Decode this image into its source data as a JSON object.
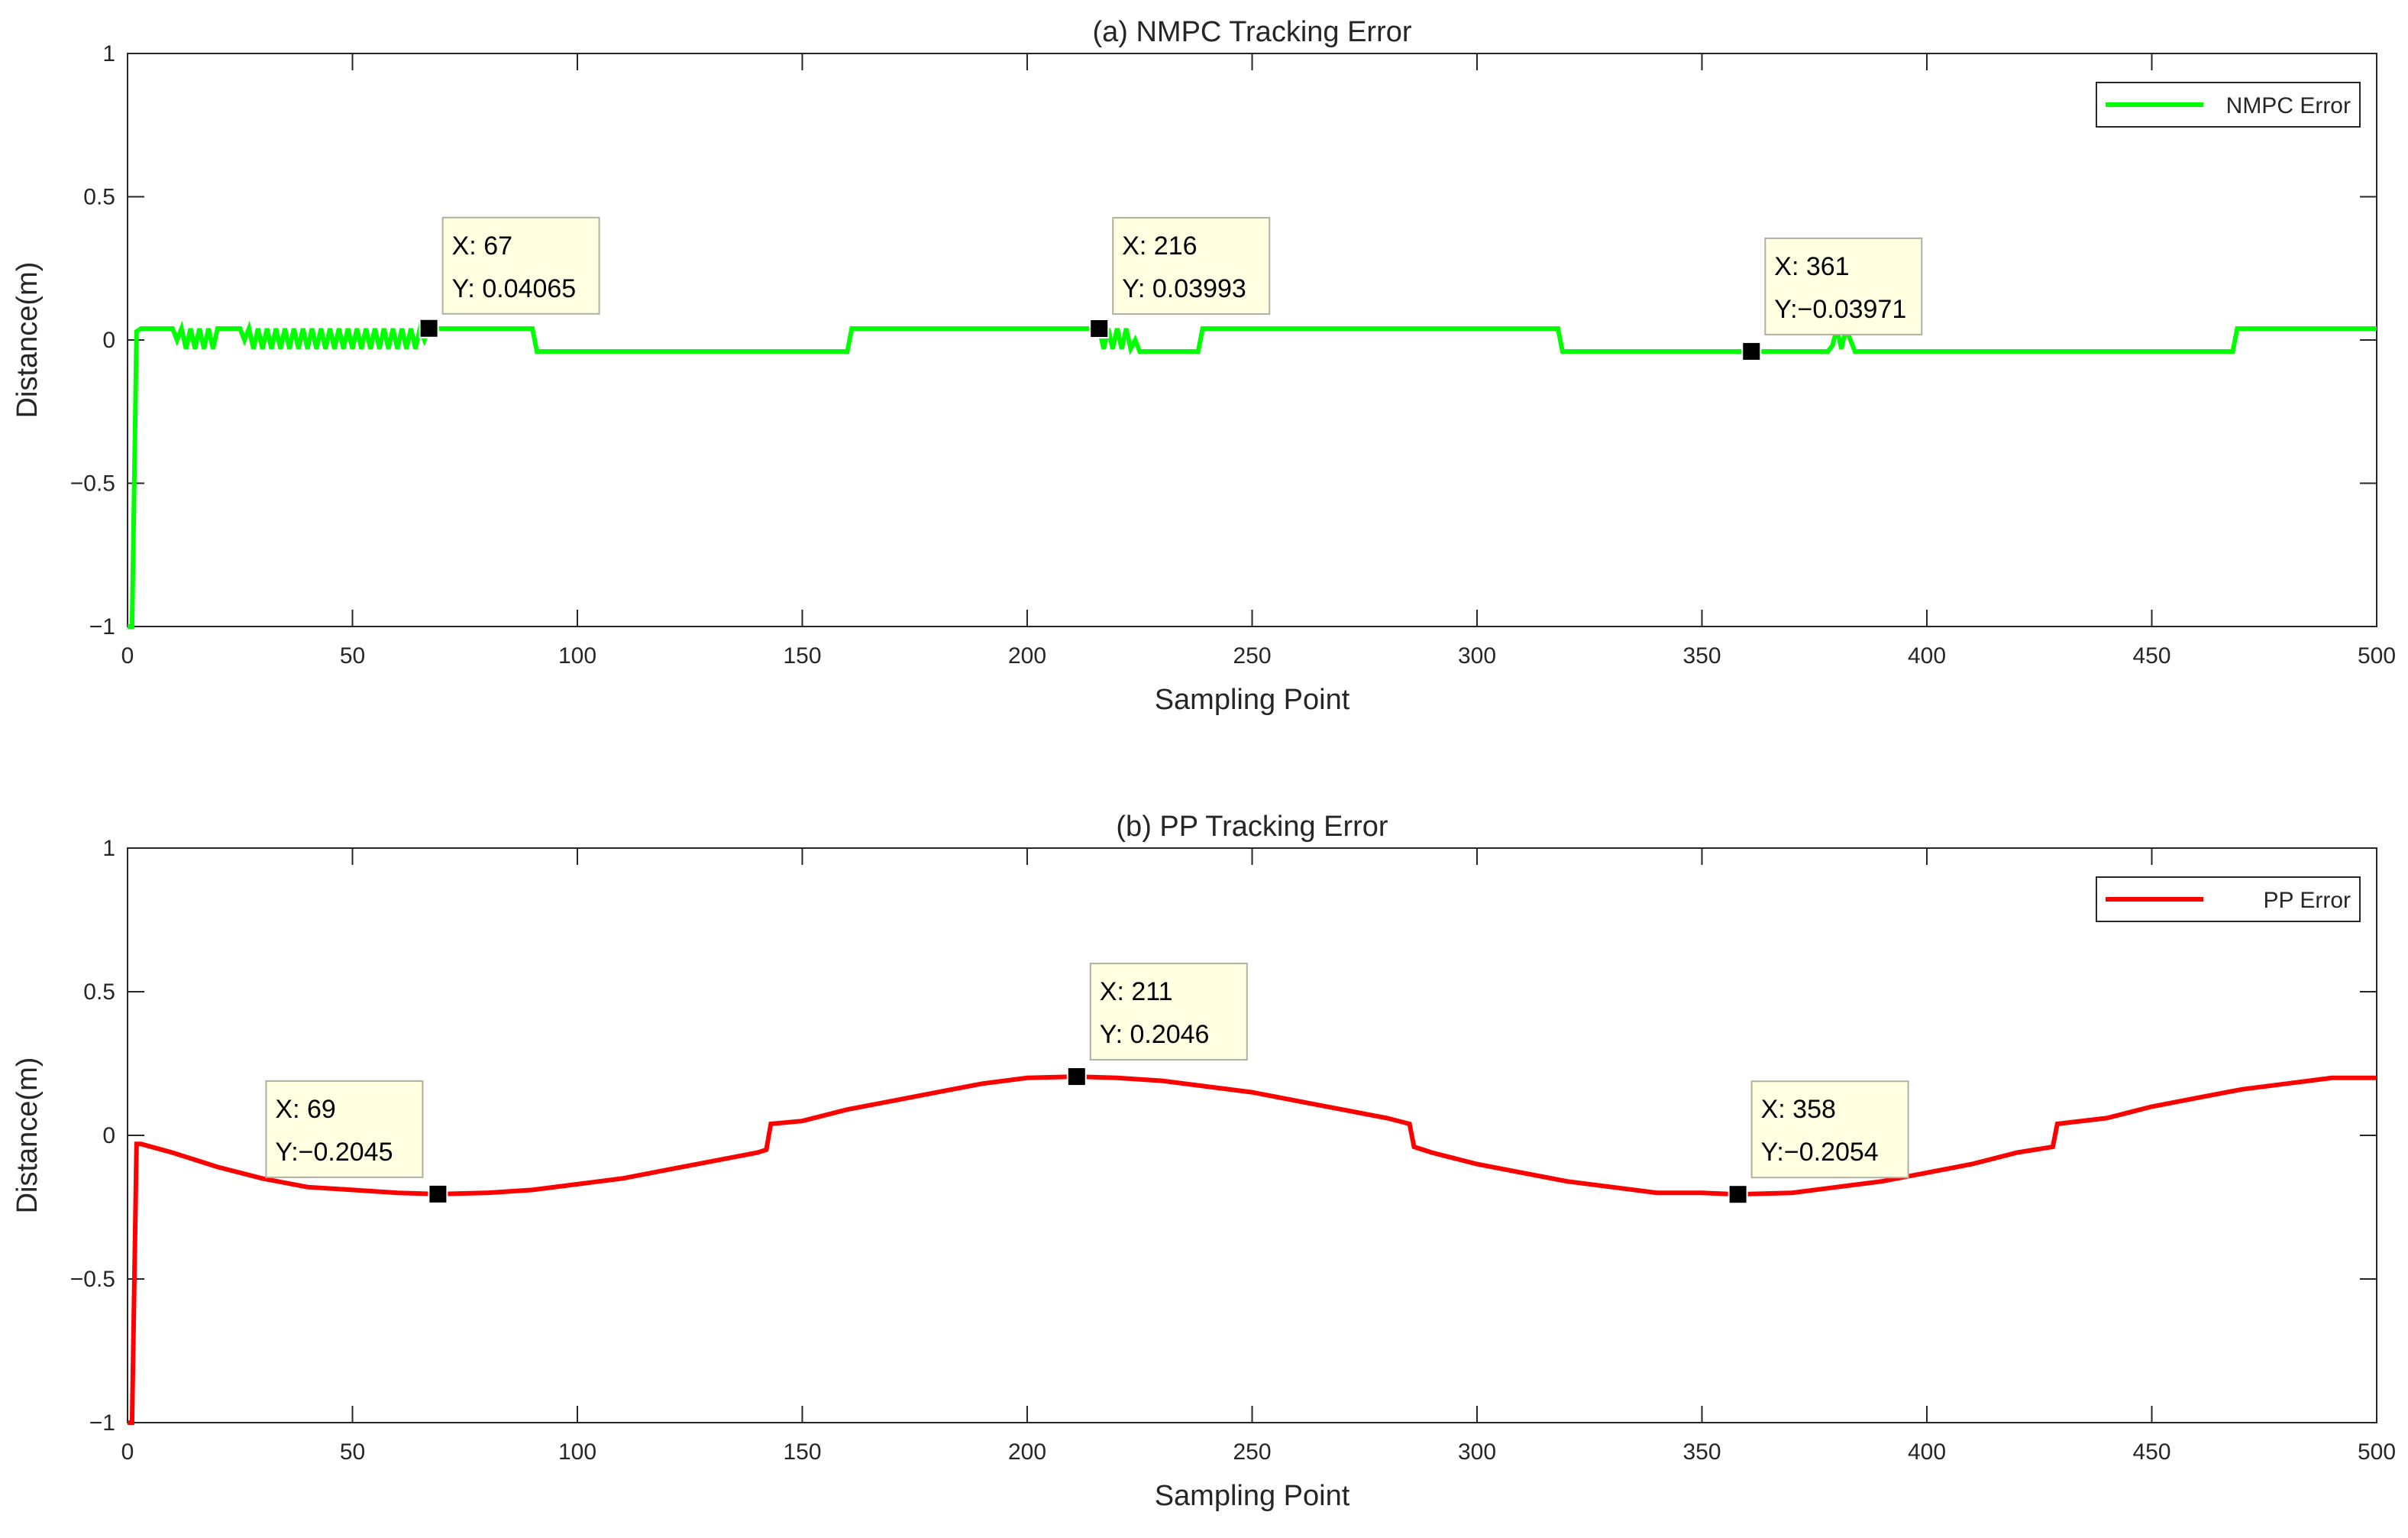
{
  "chart_data": [
    {
      "type": "line",
      "title": "(a) NMPC Tracking Error",
      "xlabel": "Sampling Point",
      "ylabel": "Distance(m)",
      "xlim": [
        0,
        500
      ],
      "ylim": [
        -1,
        1
      ],
      "xticks": [
        "0",
        "50",
        "100",
        "150",
        "200",
        "250",
        "300",
        "350",
        "400",
        "450",
        "500"
      ],
      "yticks": [
        "1",
        "0.5",
        "0",
        "−0.5",
        "−1"
      ],
      "legend": "top-right",
      "color": "#00ff00",
      "series": [
        {
          "name": "NMPC Error",
          "x": [
            0,
            1,
            2,
            3,
            10,
            11,
            12,
            13,
            14,
            15,
            16,
            17,
            18,
            19,
            20,
            25,
            26,
            27,
            28,
            29,
            30,
            31,
            32,
            33,
            34,
            35,
            36,
            37,
            38,
            39,
            40,
            41,
            42,
            43,
            44,
            45,
            46,
            47,
            48,
            49,
            50,
            51,
            52,
            53,
            54,
            55,
            56,
            57,
            58,
            59,
            60,
            61,
            62,
            63,
            64,
            65,
            66,
            67,
            68,
            69,
            70,
            90,
            91,
            160,
            161,
            216,
            217,
            218,
            219,
            220,
            221,
            222,
            223,
            224,
            225,
            238,
            239,
            318,
            319,
            378,
            379,
            380,
            381,
            382,
            383,
            384,
            392,
            393,
            468,
            469,
            500
          ],
          "y": [
            -1,
            -1,
            0.03,
            0.04,
            0.04,
            0.0,
            0.04,
            -0.03,
            0.04,
            -0.03,
            0.04,
            -0.03,
            0.04,
            -0.03,
            0.04,
            0.04,
            0.0,
            0.04,
            -0.03,
            0.04,
            -0.03,
            0.04,
            -0.03,
            0.04,
            -0.03,
            0.04,
            -0.03,
            0.04,
            -0.03,
            0.04,
            -0.03,
            0.04,
            -0.03,
            0.04,
            -0.03,
            0.04,
            -0.03,
            0.04,
            -0.03,
            0.04,
            -0.03,
            0.04,
            -0.03,
            0.04,
            -0.03,
            0.04,
            -0.03,
            0.04,
            -0.03,
            0.04,
            -0.03,
            0.04,
            -0.03,
            0.04,
            -0.03,
            0.04,
            0.0,
            0.04065,
            0.04,
            0.04,
            0.04,
            0.04,
            -0.04,
            -0.04,
            0.04,
            0.03993,
            -0.03,
            0.04,
            -0.03,
            0.04,
            -0.03,
            0.04,
            -0.03,
            0.0,
            -0.04,
            -0.04,
            0.04,
            0.04,
            -0.04,
            -0.04,
            -0.02,
            0.04,
            -0.03,
            0.04,
            0.0,
            -0.04,
            -0.04,
            -0.04,
            -0.04,
            0.04,
            0.04
          ]
        }
      ],
      "datatips": [
        {
          "x": 67,
          "y": 0.04065,
          "line1": "X: 67",
          "line2": "Y: 0.04065"
        },
        {
          "x": 216,
          "y": 0.03993,
          "line1": "X: 216",
          "line2": "Y: 0.03993"
        },
        {
          "x": 361,
          "y": -0.03971,
          "line1": "X: 361",
          "line2": "Y:−0.03971"
        }
      ]
    },
    {
      "type": "line",
      "title": "(b) PP Tracking Error",
      "xlabel": "Sampling Point",
      "ylabel": "Distance(m)",
      "xlim": [
        0,
        500
      ],
      "ylim": [
        -1,
        1
      ],
      "xticks": [
        "0",
        "50",
        "100",
        "150",
        "200",
        "250",
        "300",
        "350",
        "400",
        "450",
        "500"
      ],
      "yticks": [
        "1",
        "0.5",
        "0",
        "−0.5",
        "−1"
      ],
      "legend": "top-right",
      "color": "#ff0000",
      "series": [
        {
          "name": "PP Error",
          "x": [
            0,
            1,
            2,
            3,
            10,
            20,
            30,
            40,
            50,
            60,
            69,
            80,
            90,
            100,
            110,
            120,
            130,
            140,
            142,
            143,
            150,
            160,
            170,
            180,
            190,
            200,
            211,
            220,
            230,
            240,
            250,
            260,
            270,
            280,
            285,
            286,
            290,
            300,
            310,
            320,
            330,
            340,
            350,
            358,
            370,
            380,
            390,
            400,
            410,
            420,
            428,
            429,
            440,
            450,
            460,
            470,
            480,
            490,
            500
          ],
          "y": [
            -1,
            -1,
            -0.03,
            -0.03,
            -0.06,
            -0.11,
            -0.15,
            -0.18,
            -0.19,
            -0.2,
            -0.2045,
            -0.2,
            -0.19,
            -0.17,
            -0.15,
            -0.12,
            -0.09,
            -0.06,
            -0.05,
            0.04,
            0.05,
            0.09,
            0.12,
            0.15,
            0.18,
            0.2,
            0.2046,
            0.2,
            0.19,
            0.17,
            0.15,
            0.12,
            0.09,
            0.06,
            0.04,
            -0.04,
            -0.06,
            -0.1,
            -0.13,
            -0.16,
            -0.18,
            -0.2,
            -0.2,
            -0.2054,
            -0.2,
            -0.18,
            -0.16,
            -0.13,
            -0.1,
            -0.06,
            -0.04,
            0.04,
            0.06,
            0.1,
            0.13,
            0.16,
            0.18,
            0.2,
            0.2
          ]
        }
      ],
      "datatips": [
        {
          "x": 69,
          "y": -0.2045,
          "line1": "X: 69",
          "line2": "Y:−0.2045"
        },
        {
          "x": 211,
          "y": 0.2046,
          "line1": "X: 211",
          "line2": "Y: 0.2046"
        },
        {
          "x": 358,
          "y": -0.2054,
          "line1": "X: 358",
          "line2": "Y:−0.2054"
        }
      ]
    }
  ]
}
